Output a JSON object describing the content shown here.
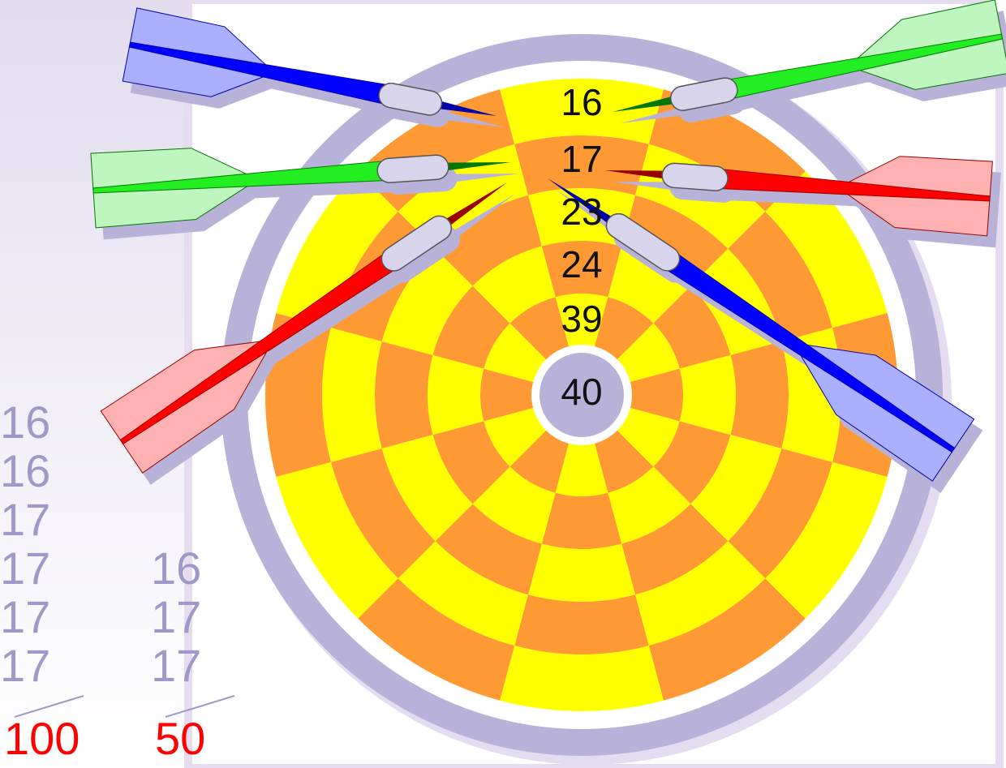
{
  "board": {
    "rings": [
      16,
      17,
      23,
      24,
      39,
      40
    ]
  },
  "sums": [
    {
      "addends": [
        16,
        16,
        17,
        17,
        17,
        17
      ],
      "total": 100
    },
    {
      "addends": [
        16,
        17,
        17
      ],
      "total": 50
    }
  ]
}
